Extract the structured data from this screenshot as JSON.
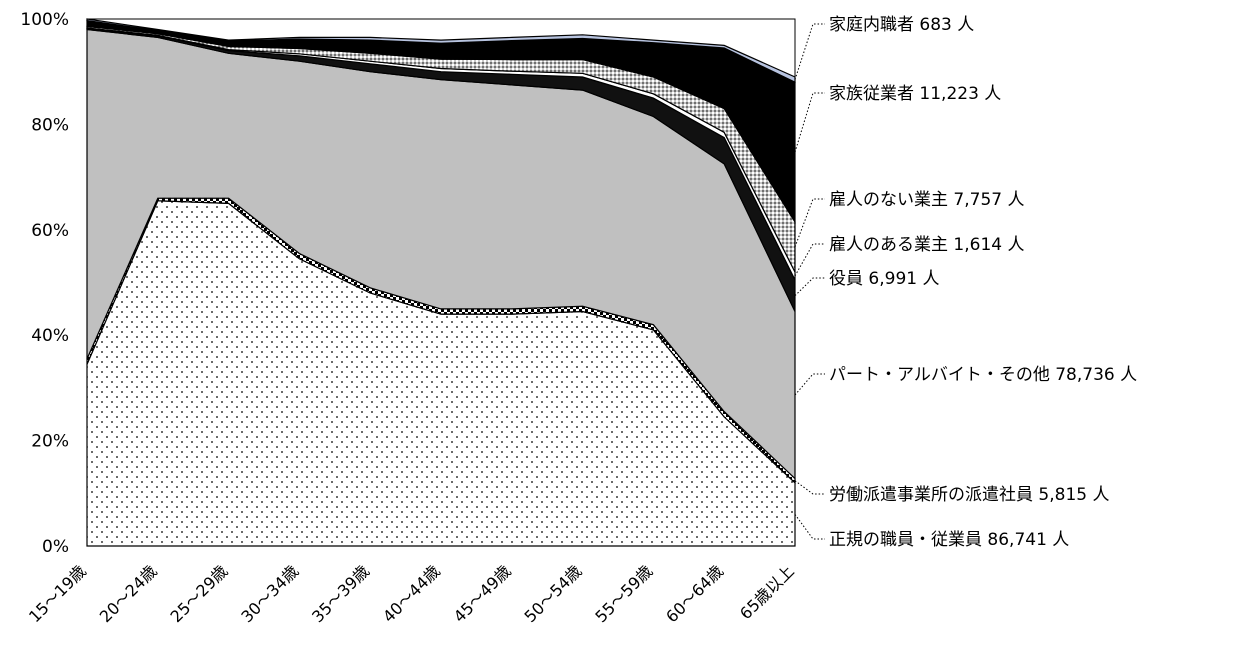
{
  "chart_data": {
    "type": "area",
    "stacked_percent": true,
    "categories": [
      "15～19歳",
      "20～24歳",
      "25～29歳",
      "30～34歳",
      "35～39歳",
      "40～44歳",
      "45～49歳",
      "50～54歳",
      "55～59歳",
      "60～64歳",
      "65歳以上"
    ],
    "y_ticks": [
      "0%",
      "20%",
      "40%",
      "60%",
      "80%",
      "100%"
    ],
    "ylim": [
      0,
      100
    ],
    "legend_placement": "right",
    "grid": false,
    "series": [
      {
        "name": "正規の職員・従業員",
        "total": "86,741",
        "values": [
          34.5,
          65.5,
          65.0,
          54.5,
          48.0,
          44.0,
          44.0,
          44.5,
          41.0,
          24.5,
          12.0
        ]
      },
      {
        "name": "労働派遣事業所の派遣社員",
        "total": "5,815",
        "values": [
          1.0,
          0.5,
          1.0,
          1.0,
          1.0,
          1.0,
          1.0,
          1.0,
          1.0,
          1.0,
          0.8
        ]
      },
      {
        "name": "パート・アルバイト・その他",
        "total": "78,736",
        "values": [
          62.5,
          30.5,
          27.5,
          36.5,
          41.0,
          43.5,
          42.5,
          41.0,
          39.5,
          47.0,
          31.7
        ]
      },
      {
        "name": "役員",
        "total": "6,991",
        "values": [
          0.2,
          0.3,
          0.5,
          1.0,
          1.5,
          1.5,
          2.0,
          2.5,
          3.5,
          5.0,
          6.0
        ]
      },
      {
        "name": "雇人のある業主",
        "total": "1,614",
        "values": [
          0.1,
          0.1,
          0.2,
          0.4,
          0.5,
          0.6,
          0.6,
          0.7,
          0.8,
          1.0,
          1.5
        ]
      },
      {
        "name": "雇人のない業主",
        "total": "7,757",
        "values": [
          0.3,
          0.3,
          0.6,
          1.0,
          1.5,
          1.8,
          2.2,
          2.6,
          3.2,
          4.5,
          9.5
        ]
      },
      {
        "name": "家族従業者",
        "total": "11,223",
        "values": [
          1.1,
          0.6,
          1.0,
          1.8,
          2.5,
          3.0,
          3.6,
          4.0,
          6.5,
          11.5,
          26.5
        ]
      },
      {
        "name": "家庭内職者",
        "total": "683",
        "values": [
          0.3,
          0.2,
          0.2,
          0.3,
          0.5,
          0.6,
          0.6,
          0.7,
          0.5,
          0.5,
          1.0
        ]
      }
    ],
    "unit": "人",
    "colors": {
      "regular": "#ffffff",
      "dispatch": "#ffffff",
      "part_time": "#c0c0c0",
      "executive": "#000000",
      "employer": "#ffffff",
      "self_employed": "#d0d0d0",
      "family": "#000000",
      "home_worker": "#b8c4e0"
    }
  }
}
